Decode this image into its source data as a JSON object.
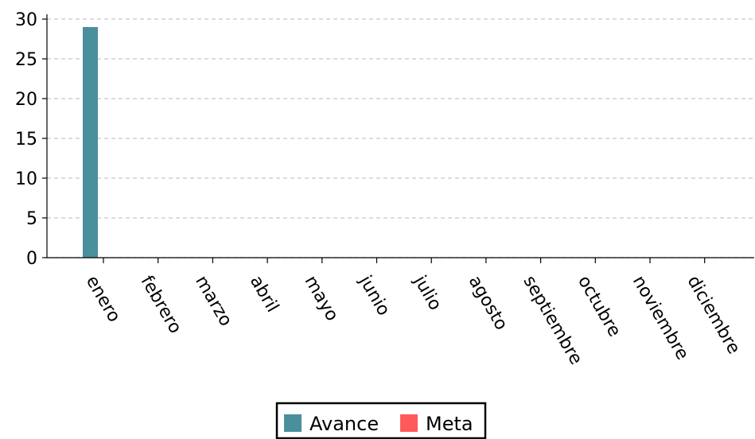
{
  "chart_data": {
    "type": "bar",
    "categories": [
      "enero",
      "febrero",
      "marzo",
      "abril",
      "mayo",
      "junio",
      "julio",
      "agosto",
      "septiembre",
      "octubre",
      "noviembre",
      "diciembre"
    ],
    "series": [
      {
        "name": "Avance",
        "color": "#4a8f9c",
        "values": [
          29,
          0,
          0,
          0,
          0,
          0,
          0,
          0,
          0,
          0,
          0,
          0
        ]
      },
      {
        "name": "Meta",
        "color": "#ff5a5a",
        "values": [
          0,
          0,
          0,
          0,
          0,
          0,
          0,
          0,
          0,
          0,
          0,
          0
        ]
      }
    ],
    "title": "",
    "xlabel": "",
    "ylabel": "",
    "ylim": [
      0,
      30
    ],
    "yticks": [
      "0",
      "5",
      "10",
      "15",
      "20",
      "25",
      "30"
    ],
    "grid": "horizontal dashed",
    "legend_position": "bottom-center"
  }
}
